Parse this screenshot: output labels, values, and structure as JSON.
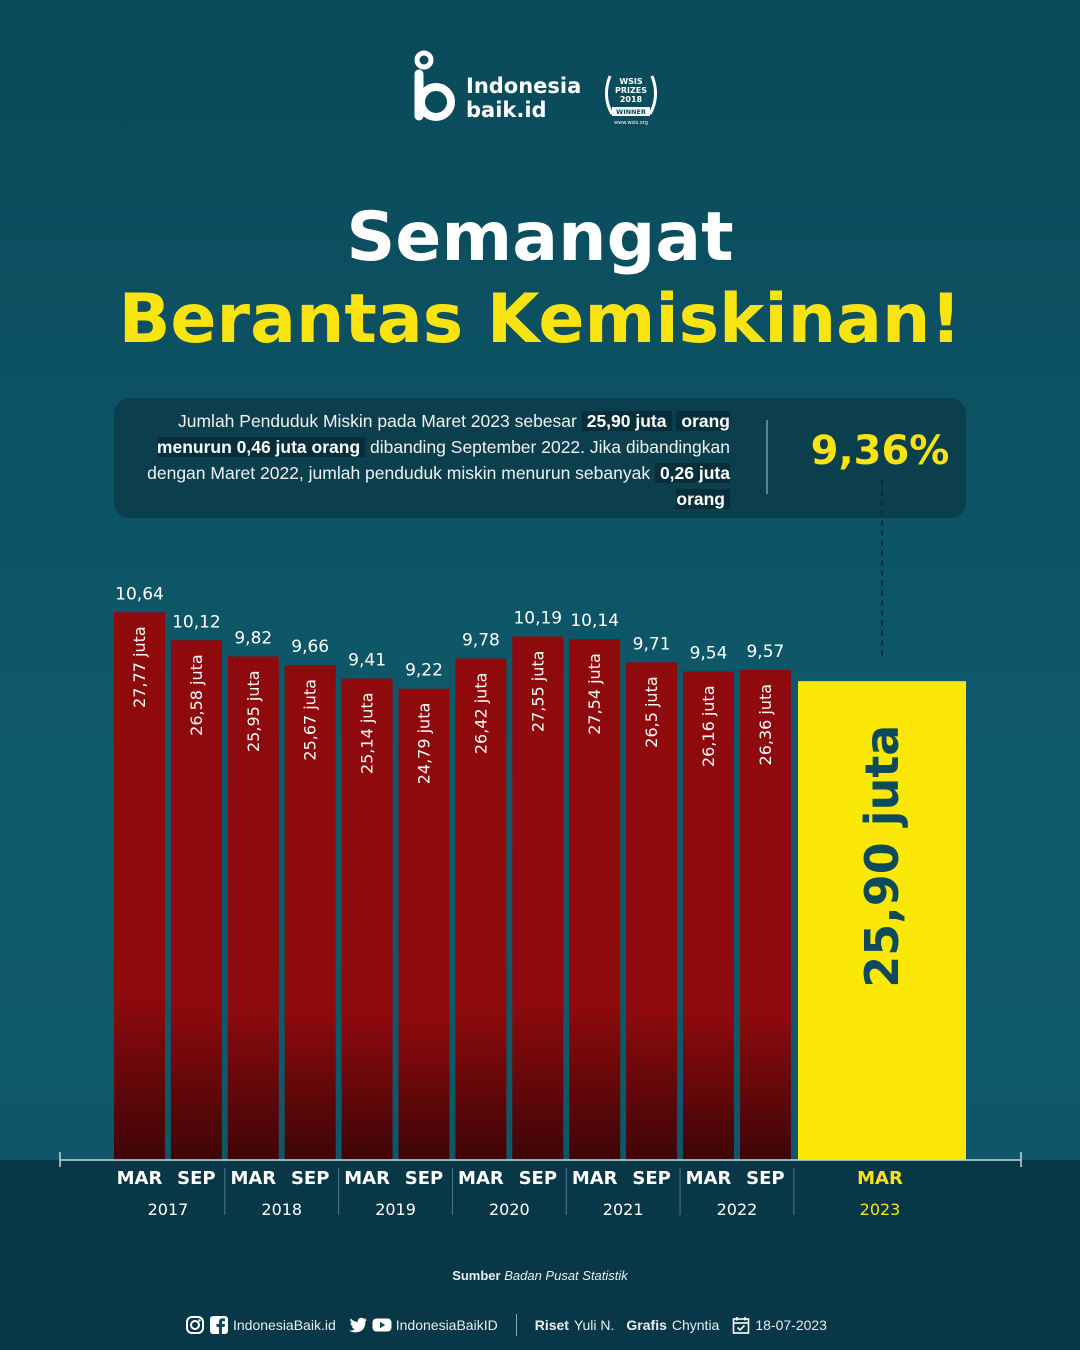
{
  "brand": {
    "name_line1": "Indonesia",
    "name_line2": "baik.id",
    "award_text": "WSIS PRIZES 2018 WINNER",
    "award_url": "www.wsis.org"
  },
  "title": {
    "line1": "Semangat",
    "line2": "Berantas Kemiskinan!"
  },
  "info": {
    "t1": "Jumlah Penduduk Miskin pada Maret 2023 sebesar ",
    "h1": "25,90 juta",
    "h2": "orang menurun 0,46 juta orang",
    "t2": " dibanding September 2022. Jika dibandingkan dengan Maret 2022, jumlah penduduk miskin menurun sebanyak ",
    "h3": "0,26 juta orang",
    "percentage": "9,36%"
  },
  "chart_data": {
    "type": "bar",
    "categories": [
      "MAR 2017",
      "SEP 2017",
      "MAR 2018",
      "SEP 2018",
      "MAR 2019",
      "SEP 2019",
      "MAR 2020",
      "SEP 2020",
      "MAR 2021",
      "SEP 2021",
      "MAR 2022",
      "SEP 2022",
      "MAR 2023"
    ],
    "period_labels": [
      "MAR",
      "SEP",
      "MAR",
      "SEP",
      "MAR",
      "SEP",
      "MAR",
      "SEP",
      "MAR",
      "SEP",
      "MAR",
      "SEP",
      "MAR"
    ],
    "years": [
      "2017",
      "2018",
      "2019",
      "2020",
      "2021",
      "2022",
      "2023"
    ],
    "percent_values": [
      10.64,
      10.12,
      9.82,
      9.66,
      9.41,
      9.22,
      9.78,
      10.19,
      10.14,
      9.71,
      9.54,
      9.57,
      9.36
    ],
    "percent_labels": [
      "10,64",
      "10,12",
      "9,82",
      "9,66",
      "9,41",
      "9,22",
      "9,78",
      "10,19",
      "10,14",
      "9,71",
      "9,54",
      "9,57",
      "9,36%"
    ],
    "population_values": [
      27.77,
      26.58,
      25.95,
      25.67,
      25.14,
      24.79,
      26.42,
      27.55,
      27.54,
      26.5,
      26.16,
      26.36,
      25.9
    ],
    "population_labels": [
      "27,77 juta",
      "26,58 juta",
      "25,95 juta",
      "25,67 juta",
      "25,14 juta",
      "24,79 juta",
      "26,42 juta",
      "27,55 juta",
      "27,54 juta",
      "26,5 juta",
      "26,16 juta",
      "26,36 juta",
      "25,90 juta"
    ],
    "highlight_index": 12,
    "colors": {
      "bar_top": "#8e0a0c",
      "bar_bottom": "#3e0507",
      "highlight": "#fce806",
      "highlight_text": "#0c4a5c",
      "highlight_label": "#f9e311"
    }
  },
  "source": {
    "label": "Sumber",
    "name": "Badan Pusat Statistik"
  },
  "footer": {
    "site": "IndonesiaBaik.id",
    "handle": "IndonesiaBaikID",
    "riset_label": "Riset",
    "riset_name": "Yuli N.",
    "grafis_label": "Grafis",
    "grafis_name": "Chyntia",
    "date": "18-07-2023"
  }
}
